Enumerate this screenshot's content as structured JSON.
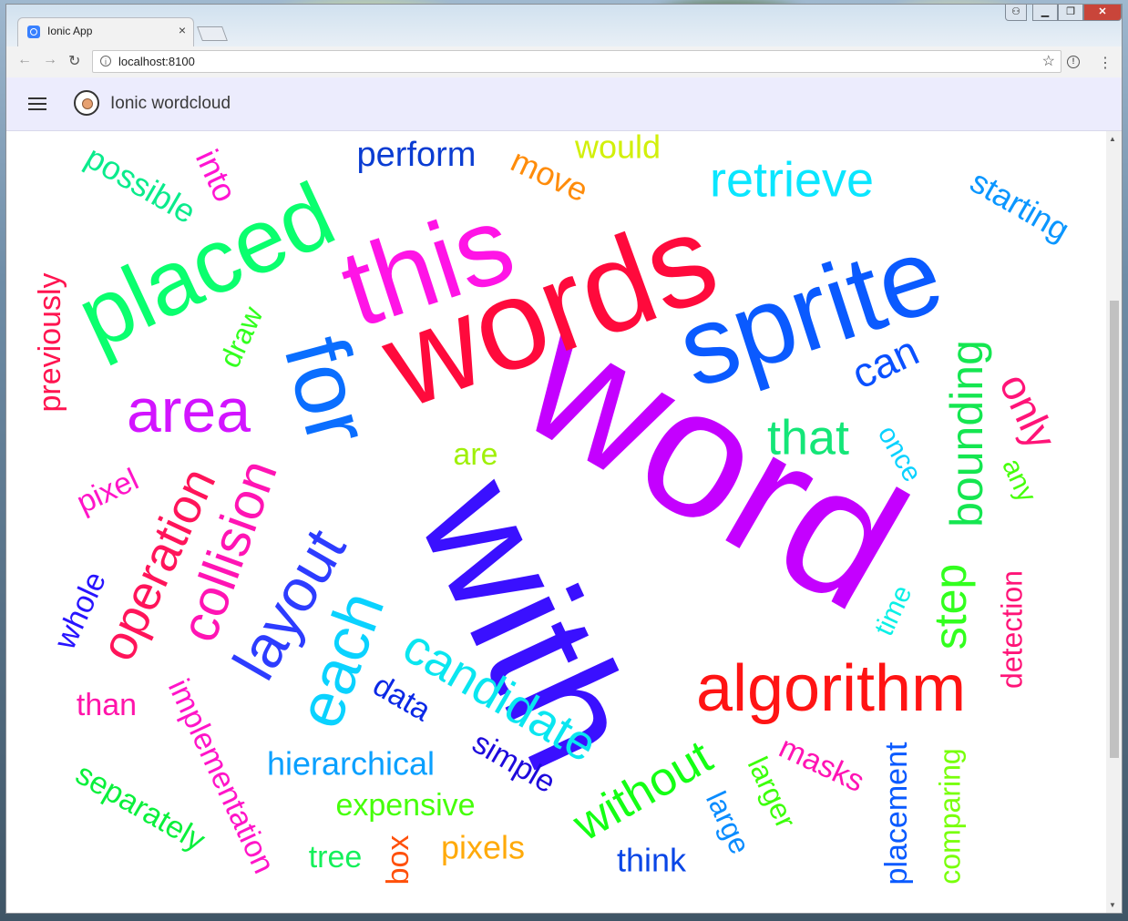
{
  "browser": {
    "tab_title": "Ionic App",
    "tab_close": "×",
    "url": "localhost:8100",
    "back": "←",
    "forward": "→",
    "reload": "↻",
    "star": "☆",
    "menu": "⋮"
  },
  "app": {
    "title": "Ionic wordcloud",
    "menu_icon": "hamburger-menu-icon",
    "logo_icon": "app-logo-icon"
  },
  "colors": {
    "appbar": "#ececfd",
    "content": "#ffffff"
  },
  "words": [
    {
      "text": "word",
      "color": "#c400ff"
    },
    {
      "text": "with",
      "color": "#3a10ff"
    },
    {
      "text": "words",
      "color": "#ff0a3c"
    },
    {
      "text": "sprite",
      "color": "#0a5aff"
    },
    {
      "text": "this",
      "color": "#ff14e6"
    },
    {
      "text": "placed",
      "color": "#0aff6e"
    },
    {
      "text": "for",
      "color": "#0a6eff"
    },
    {
      "text": "area",
      "color": "#d214ff"
    },
    {
      "text": "algorithm",
      "color": "#ff1414"
    },
    {
      "text": "layout",
      "color": "#2d3cff"
    },
    {
      "text": "each",
      "color": "#0ad2ff"
    },
    {
      "text": "candidate",
      "color": "#0ae6f0"
    },
    {
      "text": "collision",
      "color": "#ff14b4"
    },
    {
      "text": "operation",
      "color": "#ff145a"
    },
    {
      "text": "bounding",
      "color": "#14e650"
    },
    {
      "text": "step",
      "color": "#32ff1e"
    },
    {
      "text": "without",
      "color": "#14ff14"
    },
    {
      "text": "retrieve",
      "color": "#0ae6ff"
    },
    {
      "text": "that",
      "color": "#14e678"
    },
    {
      "text": "can",
      "color": "#0a50ff"
    },
    {
      "text": "only",
      "color": "#ff1478"
    },
    {
      "text": "perform",
      "color": "#0a3cd2"
    },
    {
      "text": "possible",
      "color": "#0aeb8c"
    },
    {
      "text": "into",
      "color": "#ff14d2"
    },
    {
      "text": "move",
      "color": "#ff8c0a"
    },
    {
      "text": "would",
      "color": "#d2f00a"
    },
    {
      "text": "starting",
      "color": "#0a96ff"
    },
    {
      "text": "previously",
      "color": "#ff1450"
    },
    {
      "text": "draw",
      "color": "#32ff1e"
    },
    {
      "text": "are",
      "color": "#a0f00a"
    },
    {
      "text": "once",
      "color": "#0ad2ff"
    },
    {
      "text": "any",
      "color": "#46ff0a"
    },
    {
      "text": "pixel",
      "color": "#ff14c8"
    },
    {
      "text": "whole",
      "color": "#2814ff"
    },
    {
      "text": "time",
      "color": "#0af0e6"
    },
    {
      "text": "detection",
      "color": "#ff1478"
    },
    {
      "text": "than",
      "color": "#ff14aa"
    },
    {
      "text": "implementation",
      "color": "#ff14c8"
    },
    {
      "text": "data",
      "color": "#0a28e6"
    },
    {
      "text": "simple",
      "color": "#1e0adc"
    },
    {
      "text": "hierarchical",
      "color": "#0aa0ff"
    },
    {
      "text": "masks",
      "color": "#ff14b4"
    },
    {
      "text": "placement",
      "color": "#0a5aff"
    },
    {
      "text": "comparing",
      "color": "#78ff0a"
    },
    {
      "text": "larger",
      "color": "#3cff0a"
    },
    {
      "text": "large",
      "color": "#0a8cff"
    },
    {
      "text": "separately",
      "color": "#0af03c"
    },
    {
      "text": "expensive",
      "color": "#46ff0a"
    },
    {
      "text": "think",
      "color": "#0a46e6"
    },
    {
      "text": "tree",
      "color": "#14f05a"
    },
    {
      "text": "box",
      "color": "#ff500a"
    },
    {
      "text": "pixels",
      "color": "#ffaa0a"
    }
  ]
}
